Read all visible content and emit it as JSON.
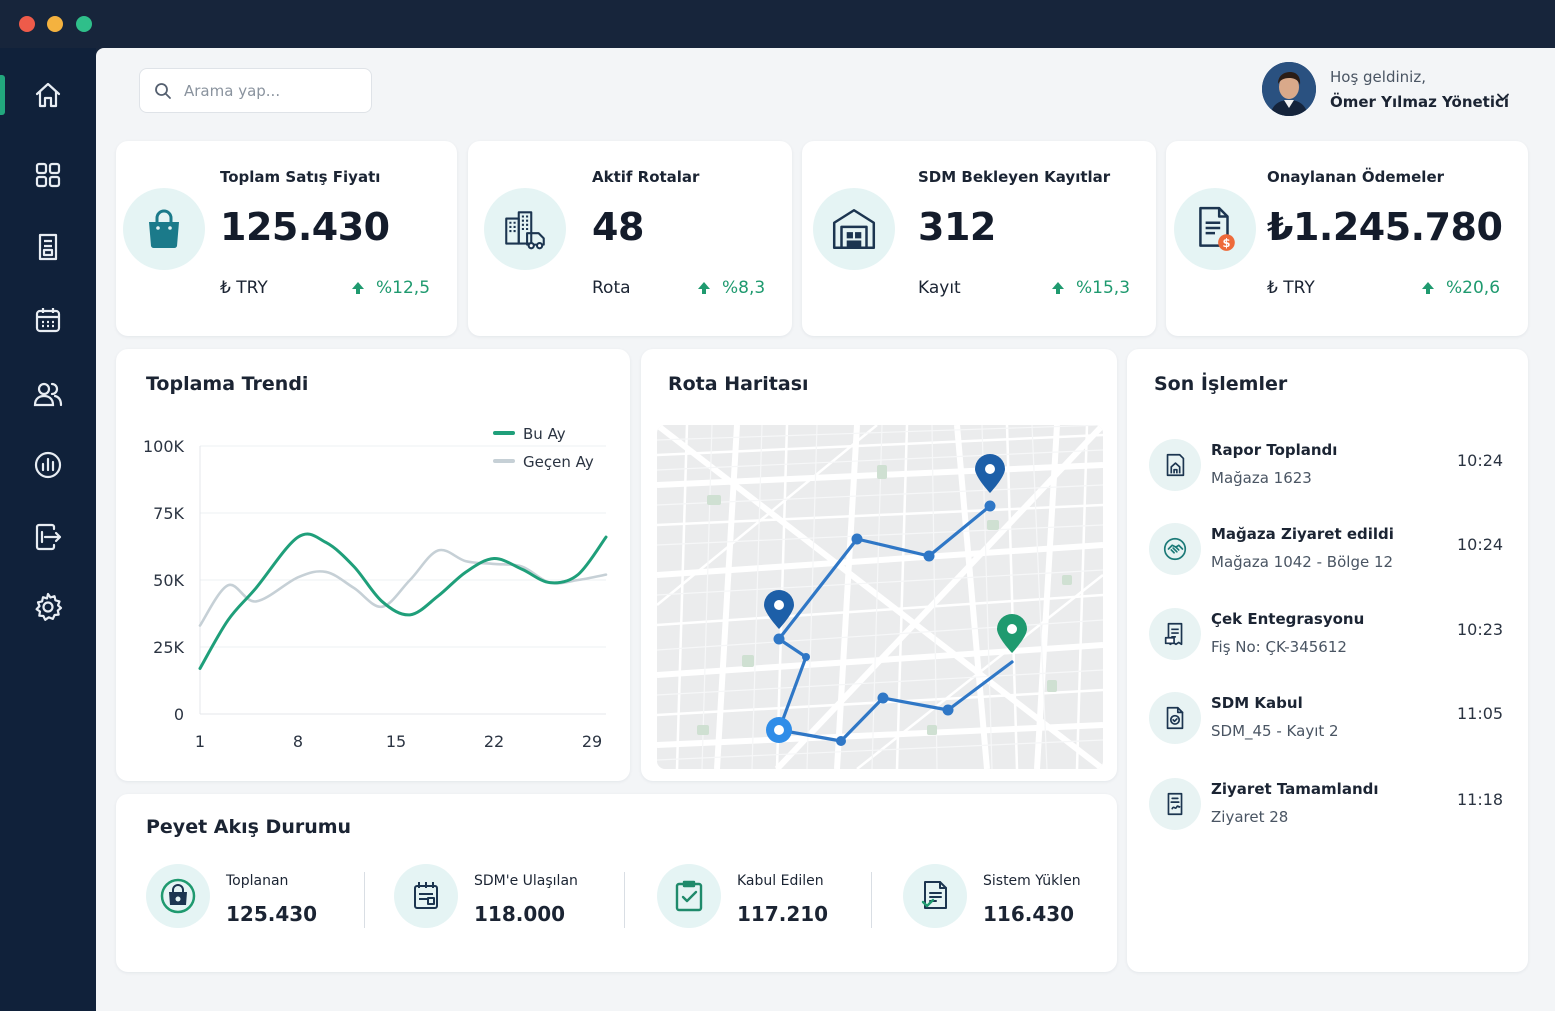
{
  "window": {
    "dots": [
      "#ee5b4a",
      "#f4b23f",
      "#2fbf8a"
    ]
  },
  "sidebar": {
    "items": [
      "home-icon",
      "grid-icon",
      "report-icon",
      "calendar-icon",
      "users-icon",
      "analytics-icon",
      "export-icon",
      "gear-icon"
    ],
    "active": "home-icon"
  },
  "search": {
    "placeholder": "Arama yap..."
  },
  "user": {
    "greeting": "Hoş geldiniz,",
    "name": "Ömer Yılmaz Yönetici"
  },
  "kpis": [
    {
      "title": "Toplam Satış Fiyatı",
      "value": "125.430",
      "unit": "₺ TRY",
      "change": "%12,5",
      "icon": "shopping-bag-icon"
    },
    {
      "title": "Aktif Rotalar",
      "value": "48",
      "unit": "Rota",
      "change": "%8,3",
      "icon": "buildings-truck-icon"
    },
    {
      "title": "SDM Bekleyen Kayıtlar",
      "value": "312",
      "unit": "Kayıt",
      "change": "%15,3",
      "icon": "warehouse-icon"
    },
    {
      "title": "Onaylanan Ödemeler",
      "value": "₺1.245.780",
      "unit": "₺ TRY",
      "change": "%20,6",
      "icon": "invoice-coin-icon"
    }
  ],
  "trend": {
    "title": "Toplama Trendi",
    "chart_data": {
      "type": "line",
      "x": [
        1,
        3,
        5,
        8,
        10,
        12,
        14,
        16,
        18,
        20,
        22,
        24,
        26,
        28,
        30
      ],
      "xticks": [
        "1",
        "8",
        "15",
        "22",
        "29"
      ],
      "yticks": [
        "100K",
        "75K",
        "50K",
        "25K",
        "0"
      ],
      "ylim": [
        0,
        100000
      ],
      "series": [
        {
          "name": "Bu Ay",
          "color": "#1f9f7a",
          "values": [
            17000,
            35000,
            47000,
            66000,
            64000,
            55000,
            42000,
            37000,
            44000,
            53000,
            58000,
            54000,
            49000,
            52000,
            66000
          ]
        },
        {
          "name": "Geçen Ay",
          "color": "#c6d0d6",
          "values": [
            33000,
            48000,
            42000,
            51000,
            53000,
            47000,
            40000,
            50000,
            61000,
            57000,
            56000,
            55000,
            49000,
            50000,
            52000
          ]
        }
      ],
      "legend": "top-right",
      "grid": true
    }
  },
  "map": {
    "title": "Rota Haritası"
  },
  "transactions": {
    "title": "Son İşlemler",
    "items": [
      {
        "title": "Rapor Toplandı",
        "sub": "Mağaza 1623",
        "time": "10:24",
        "icon": "store-report-icon"
      },
      {
        "title": "Mağaza Ziyaret edildi",
        "sub": "Mağaza 1042 - Bölge 12",
        "time": "10:24",
        "icon": "handshake-icon"
      },
      {
        "title": "Çek Entegrasyonu",
        "sub": "Fiş No: ÇK-345612",
        "time": "10:23",
        "icon": "receipt-icon"
      },
      {
        "title": "SDM Kabul",
        "sub": "SDM_45 - Kayıt 2",
        "time": "11:05",
        "icon": "document-check-icon"
      },
      {
        "title": "Ziyaret Tamamlandı",
        "sub": "Ziyaret 28",
        "time": "11:18",
        "icon": "document-sign-icon"
      }
    ]
  },
  "flow": {
    "title": "Peyet Akış Durumu",
    "items": [
      {
        "label": "Toplanan",
        "value": "125.430",
        "icon": "collected-bag-icon"
      },
      {
        "label": "SDM'e Ulaşılan",
        "value": "118.000",
        "icon": "register-icon"
      },
      {
        "label": "Kabul Edilen",
        "value": "117.210",
        "icon": "clipboard-check-icon"
      },
      {
        "label": "Sistem Yüklen",
        "value": "116.430",
        "icon": "document-upload-icon"
      }
    ]
  }
}
